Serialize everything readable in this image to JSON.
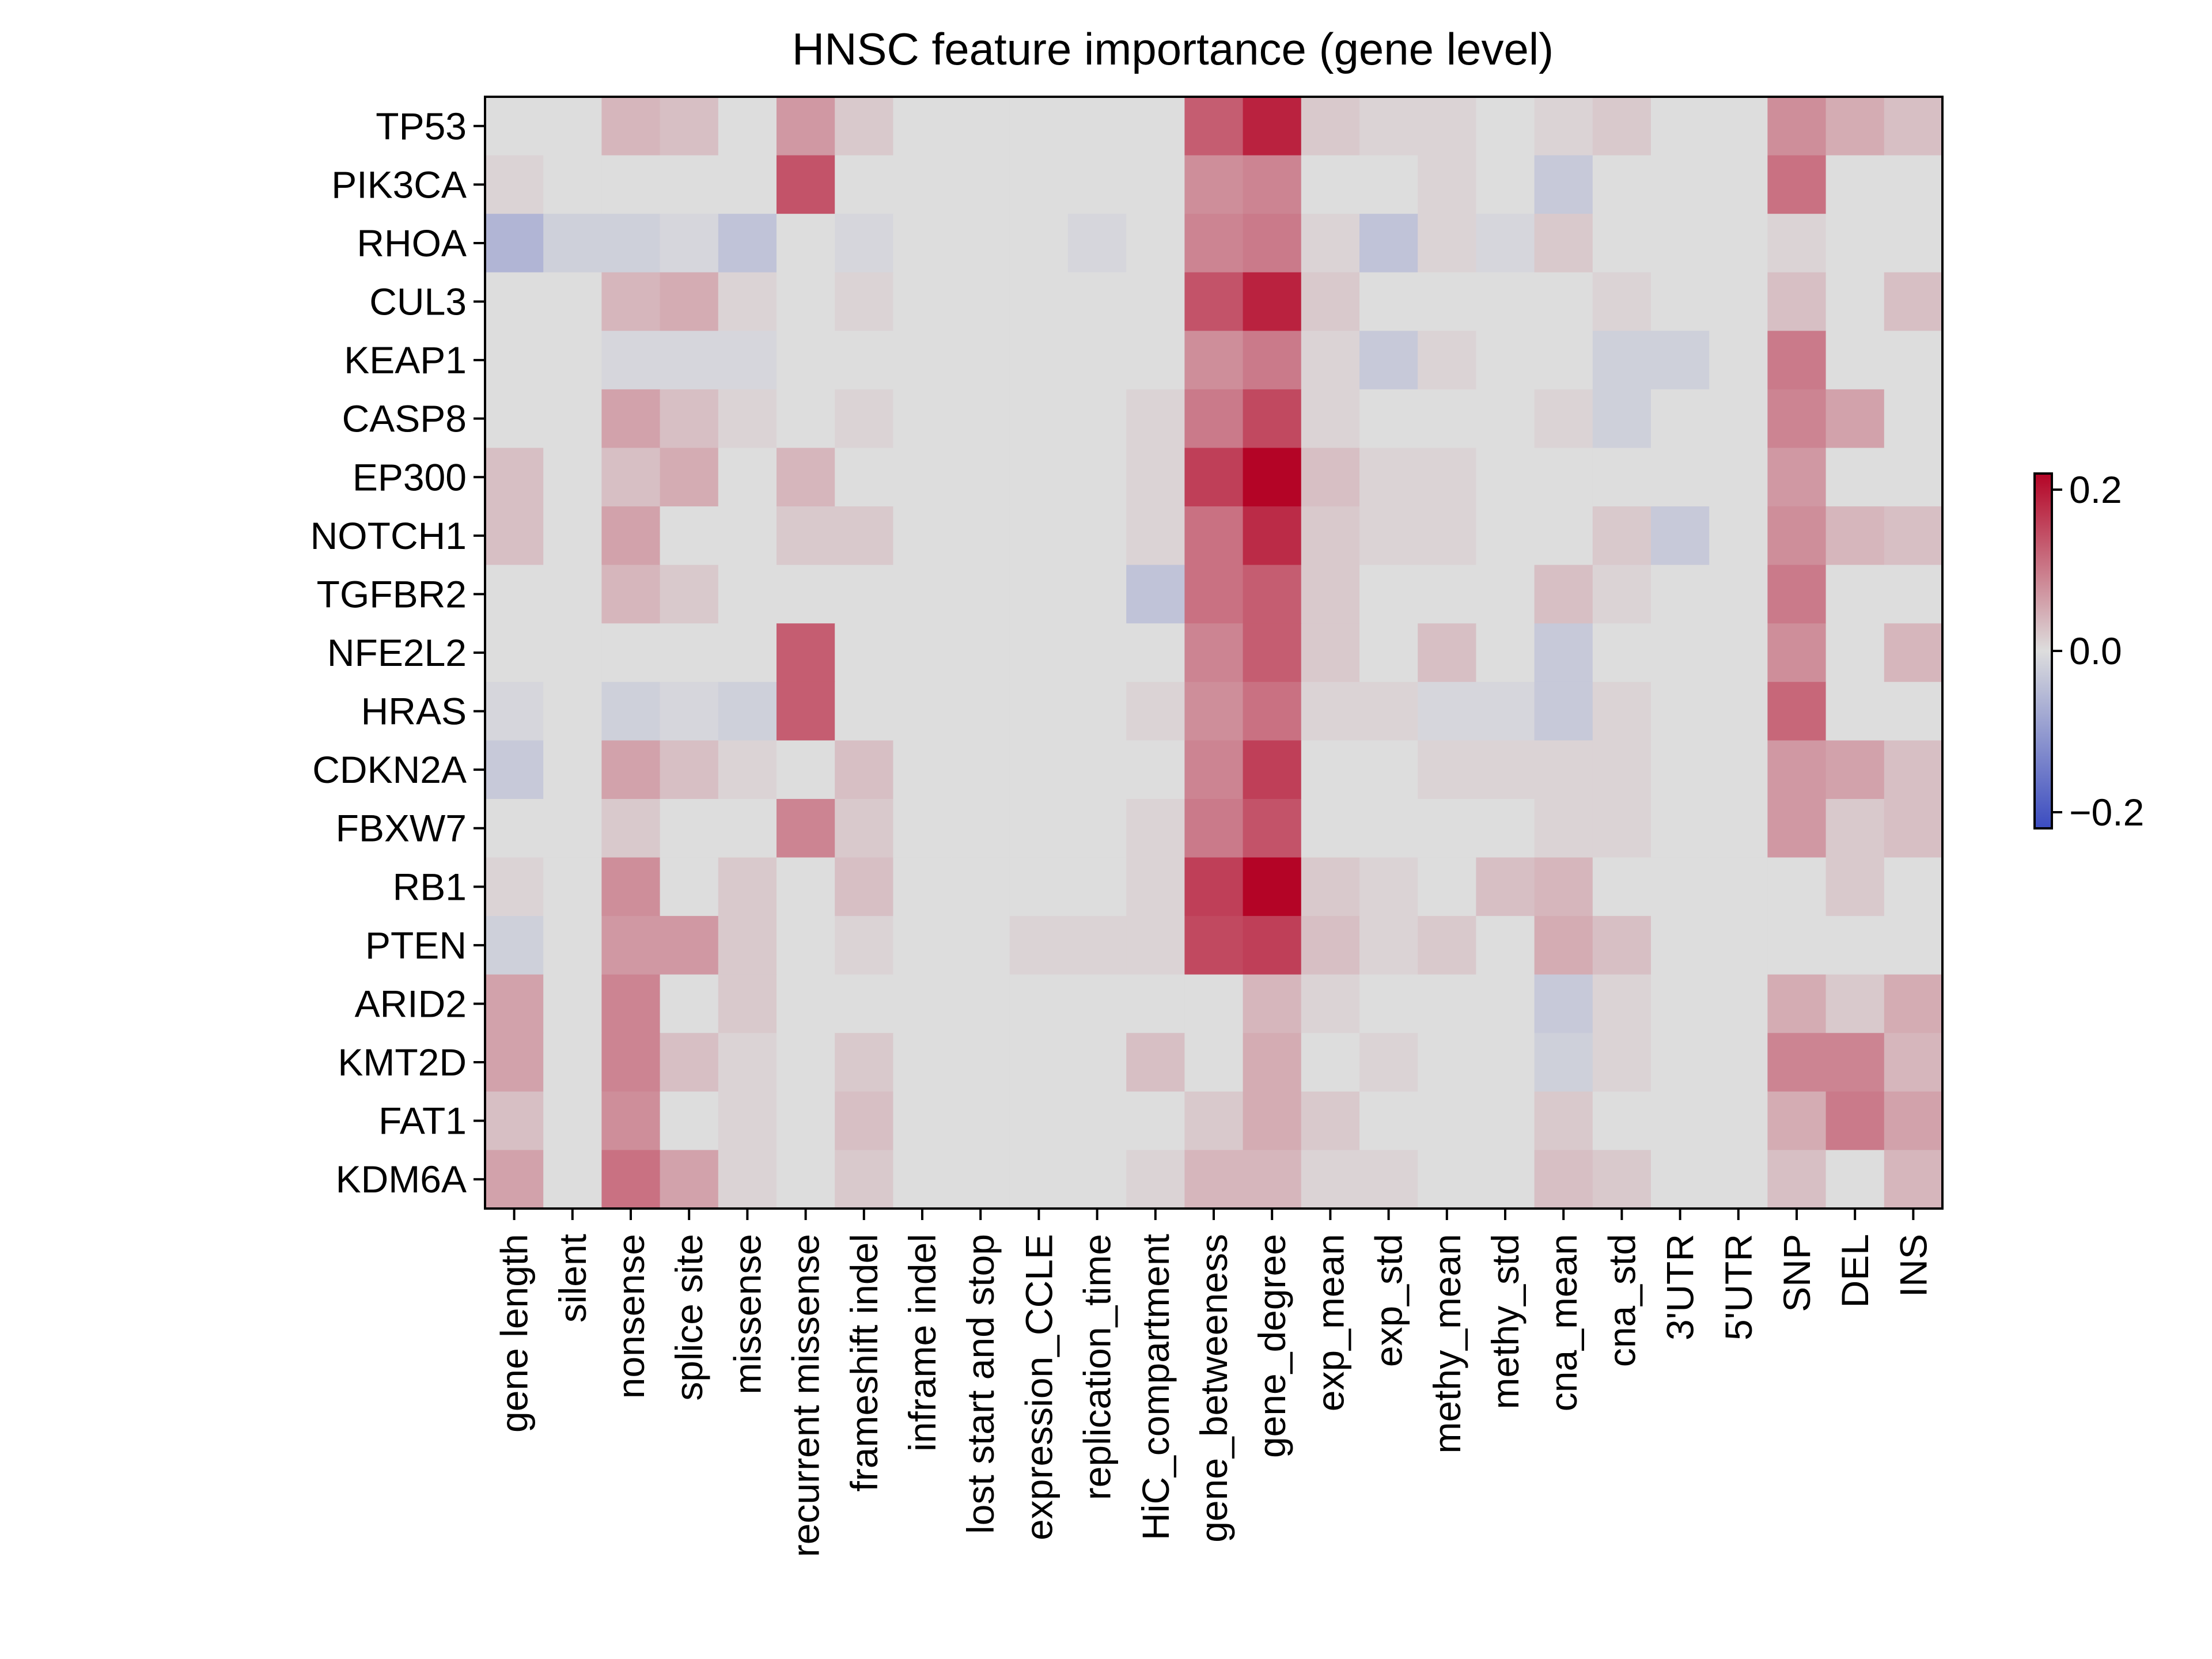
{
  "chart_data": {
    "type": "heatmap",
    "title": "HNSC feature importance (gene level)",
    "xlabel": "",
    "ylabel": "",
    "colormap": "coolwarm",
    "color_low": "#3b4cc0",
    "color_mid": "#dddddd",
    "color_high": "#b40426",
    "vmin": -0.22,
    "vmax": 0.22,
    "colorbar_ticks": [
      0.2,
      0.0,
      -0.2
    ],
    "colorbar_tick_labels": [
      "0.2",
      "0.0",
      "−0.2"
    ],
    "rows": [
      "TP53",
      "PIK3CA",
      "RHOA",
      "CUL3",
      "KEAP1",
      "CASP8",
      "EP300",
      "NOTCH1",
      "TGFBR2",
      "NFE2L2",
      "HRAS",
      "CDKN2A",
      "FBXW7",
      "RB1",
      "PTEN",
      "ARID2",
      "KMT2D",
      "FAT1",
      "KDM6A"
    ],
    "columns": [
      "gene length",
      "silent",
      "nonsense",
      "splice site",
      "missense",
      "recurrent missense",
      "frameshift indel",
      "inframe indel",
      "lost start and stop",
      "expression_CCLE",
      "replication_time",
      "HiC_compartment",
      "gene_betweeness",
      "gene_degree",
      "exp_mean",
      "exp_std",
      "methy_mean",
      "methy_std",
      "cna_mean",
      "cna_std",
      "3'UTR",
      "5'UTR",
      "SNP",
      "DEL",
      "INS"
    ],
    "values": [
      [
        0.0,
        0.0,
        0.04,
        0.03,
        0.0,
        0.07,
        0.02,
        0.0,
        0.0,
        0.0,
        0.0,
        0.0,
        0.13,
        0.19,
        0.02,
        0.01,
        0.01,
        0.0,
        0.01,
        0.02,
        0.0,
        0.0,
        0.08,
        0.05,
        0.03
      ],
      [
        0.01,
        0.0,
        0.0,
        0.0,
        0.0,
        0.14,
        0.0,
        0.0,
        0.0,
        0.0,
        0.0,
        0.0,
        0.08,
        0.09,
        0.0,
        0.0,
        0.01,
        0.0,
        -0.03,
        0.0,
        0.0,
        0.0,
        0.11,
        0.0,
        0.0
      ],
      [
        -0.06,
        -0.02,
        -0.02,
        -0.01,
        -0.04,
        0.0,
        -0.01,
        0.0,
        0.0,
        0.0,
        -0.01,
        0.0,
        0.09,
        0.1,
        0.01,
        -0.04,
        0.01,
        -0.01,
        0.02,
        0.0,
        0.0,
        0.0,
        0.01,
        0.0,
        0.0
      ],
      [
        0.0,
        0.0,
        0.04,
        0.05,
        0.01,
        0.0,
        0.01,
        0.0,
        0.0,
        0.0,
        0.0,
        0.0,
        0.14,
        0.19,
        0.02,
        0.0,
        0.0,
        0.0,
        0.0,
        0.01,
        0.0,
        0.0,
        0.03,
        0.0,
        0.03
      ],
      [
        0.0,
        0.0,
        -0.01,
        -0.01,
        -0.01,
        0.0,
        0.0,
        0.0,
        0.0,
        0.0,
        0.0,
        0.0,
        0.08,
        0.1,
        0.01,
        -0.03,
        0.01,
        0.0,
        0.0,
        -0.02,
        -0.02,
        0.0,
        0.1,
        0.0,
        0.0
      ],
      [
        0.0,
        0.0,
        0.06,
        0.03,
        0.01,
        0.0,
        0.01,
        0.0,
        0.0,
        0.0,
        0.0,
        0.01,
        0.1,
        0.15,
        0.01,
        0.0,
        0.0,
        0.0,
        0.01,
        -0.02,
        0.0,
        0.0,
        0.09,
        0.06,
        0.0
      ],
      [
        0.03,
        0.0,
        0.03,
        0.05,
        0.0,
        0.04,
        0.0,
        0.0,
        0.0,
        0.0,
        0.0,
        0.01,
        0.16,
        0.22,
        0.03,
        0.01,
        0.01,
        0.0,
        0.0,
        0.0,
        0.0,
        0.0,
        0.07,
        0.0,
        0.0
      ],
      [
        0.03,
        0.0,
        0.06,
        0.0,
        0.0,
        0.02,
        0.02,
        0.0,
        0.0,
        0.0,
        0.0,
        0.01,
        0.11,
        0.18,
        0.02,
        0.01,
        0.01,
        0.0,
        0.0,
        0.02,
        -0.03,
        0.0,
        0.08,
        0.04,
        0.03
      ],
      [
        0.0,
        0.0,
        0.04,
        0.02,
        0.0,
        0.0,
        0.0,
        0.0,
        0.0,
        0.0,
        0.0,
        -0.04,
        0.11,
        0.13,
        0.02,
        0.0,
        0.0,
        0.0,
        0.03,
        0.01,
        0.0,
        0.0,
        0.1,
        0.0,
        0.0
      ],
      [
        0.0,
        0.0,
        0.0,
        0.0,
        0.0,
        0.13,
        0.0,
        0.0,
        0.0,
        0.0,
        0.0,
        0.0,
        0.09,
        0.13,
        0.02,
        0.0,
        0.03,
        0.0,
        -0.03,
        0.0,
        0.0,
        0.0,
        0.08,
        0.0,
        0.04
      ],
      [
        -0.01,
        0.0,
        -0.02,
        -0.01,
        -0.02,
        0.13,
        0.0,
        0.0,
        0.0,
        0.0,
        0.0,
        0.01,
        0.08,
        0.11,
        0.01,
        0.01,
        -0.01,
        -0.01,
        -0.03,
        0.01,
        0.0,
        0.0,
        0.12,
        0.0,
        0.0
      ],
      [
        -0.03,
        0.0,
        0.06,
        0.03,
        0.01,
        0.0,
        0.03,
        0.0,
        0.0,
        0.0,
        0.0,
        0.0,
        0.09,
        0.16,
        0.0,
        0.0,
        0.01,
        0.01,
        0.01,
        0.01,
        0.0,
        0.0,
        0.07,
        0.06,
        0.03
      ],
      [
        0.0,
        0.0,
        0.02,
        0.0,
        0.0,
        0.09,
        0.02,
        0.0,
        0.0,
        0.0,
        0.0,
        0.01,
        0.1,
        0.14,
        0.0,
        0.0,
        0.0,
        0.0,
        0.01,
        0.01,
        0.0,
        0.0,
        0.07,
        0.02,
        0.03
      ],
      [
        0.01,
        0.0,
        0.08,
        0.0,
        0.02,
        0.0,
        0.03,
        0.0,
        0.0,
        0.0,
        0.0,
        0.01,
        0.16,
        0.22,
        0.02,
        0.01,
        0.0,
        0.03,
        0.04,
        0.0,
        0.0,
        0.0,
        0.0,
        0.02,
        0.0
      ],
      [
        -0.02,
        0.0,
        0.07,
        0.07,
        0.02,
        0.0,
        0.01,
        0.0,
        0.0,
        0.01,
        0.01,
        0.01,
        0.15,
        0.16,
        0.03,
        0.01,
        0.02,
        0.0,
        0.05,
        0.03,
        0.0,
        0.0,
        0.0,
        0.0,
        0.0
      ],
      [
        0.06,
        0.0,
        0.09,
        0.0,
        0.02,
        0.0,
        0.0,
        0.0,
        0.0,
        0.0,
        0.0,
        0.0,
        0.0,
        0.04,
        0.01,
        0.0,
        0.0,
        0.0,
        -0.03,
        0.01,
        0.0,
        0.0,
        0.05,
        0.02,
        0.05
      ],
      [
        0.06,
        0.0,
        0.09,
        0.03,
        0.01,
        0.0,
        0.02,
        0.0,
        0.0,
        0.0,
        0.0,
        0.03,
        0.0,
        0.05,
        0.0,
        0.01,
        0.0,
        0.0,
        -0.02,
        0.01,
        0.0,
        0.0,
        0.09,
        0.09,
        0.04
      ],
      [
        0.03,
        0.0,
        0.08,
        0.0,
        0.01,
        0.0,
        0.03,
        0.0,
        0.0,
        0.0,
        0.0,
        0.0,
        0.02,
        0.05,
        0.02,
        0.0,
        0.0,
        0.0,
        0.02,
        0.0,
        0.0,
        0.0,
        0.05,
        0.1,
        0.06
      ],
      [
        0.06,
        0.0,
        0.11,
        0.06,
        0.01,
        0.0,
        0.02,
        0.0,
        0.0,
        0.0,
        0.0,
        0.01,
        0.04,
        0.04,
        0.01,
        0.01,
        0.0,
        0.0,
        0.03,
        0.02,
        0.0,
        0.0,
        0.03,
        0.0,
        0.04
      ]
    ]
  }
}
